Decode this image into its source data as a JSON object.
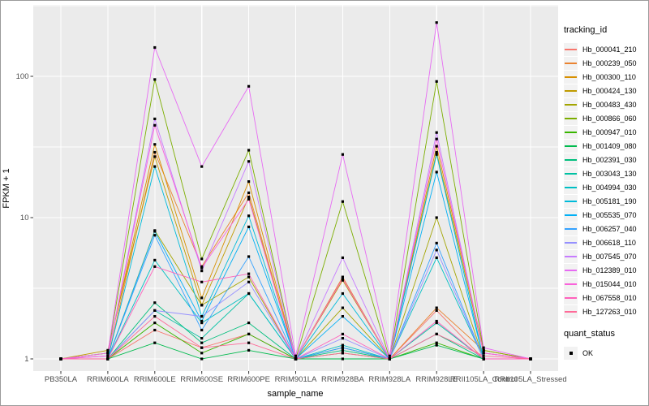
{
  "figure": {
    "xlabel": "sample_name",
    "ylabel": "FPKM + 1"
  },
  "legend": {
    "tracking_title": "tracking_id",
    "quant_title": "quant_status",
    "quant_ok_label": "OK",
    "quant_marker_color": "#000000",
    "key_background": "#F2F2F2"
  },
  "chart_data": {
    "type": "line",
    "title": "",
    "xlabel": "sample_name",
    "ylabel": "FPKM + 1",
    "yscale": "log10",
    "yticks": [
      1,
      10,
      100
    ],
    "ytick_labels": [
      "1",
      "10",
      "100"
    ],
    "ylim": [
      0.85,
      316
    ],
    "grid": true,
    "legend_position": "right",
    "panel_bg": "#EBEBEB",
    "grid_color": "#FFFFFF",
    "tick_label_color": "#4D4D4D",
    "point_color": "#000000",
    "point_shape": "square",
    "categories": [
      "PB350LA",
      "RRIM600LA",
      "RRIM600LE",
      "RRIM600SE",
      "RRIM600PE",
      "RRIM901LA",
      "RRIM928BA",
      "RRIM928LA",
      "RRIM928LE",
      "RRII105LA_Control",
      "RRII105LA_Stressed"
    ],
    "series": [
      {
        "name": "Hb_000041_210",
        "color": "#F8766D",
        "quant_status": "OK",
        "values": [
          1,
          1,
          1.6,
          1.2,
          1.5,
          1,
          1.2,
          1,
          2.2,
          1,
          1
        ]
      },
      {
        "name": "Hb_000239_050",
        "color": "#EA8331",
        "quant_status": "OK",
        "values": [
          1,
          1,
          29,
          4.5,
          15,
          1,
          3.8,
          1,
          2.3,
          1.15,
          1
        ]
      },
      {
        "name": "Hb_000300_110",
        "color": "#D89000",
        "quant_status": "OK",
        "values": [
          1,
          1.1,
          33,
          2.7,
          18,
          1,
          3.7,
          1,
          32,
          1.15,
          1
        ]
      },
      {
        "name": "Hb_000424_130",
        "color": "#C09B00",
        "quant_status": "OK",
        "values": [
          1,
          1.15,
          27,
          2.4,
          14,
          1,
          3.6,
          1,
          29,
          1.1,
          1
        ]
      },
      {
        "name": "Hb_000483_430",
        "color": "#A3A500",
        "quant_status": "OK",
        "values": [
          1,
          1,
          8.1,
          2.4,
          3.8,
          1,
          2.3,
          1,
          10,
          1,
          1
        ]
      },
      {
        "name": "Hb_000866_060",
        "color": "#7CAE00",
        "quant_status": "OK",
        "values": [
          1,
          1.1,
          95,
          5.1,
          30,
          1,
          13,
          1,
          92,
          1.15,
          1
        ]
      },
      {
        "name": "Hb_000947_010",
        "color": "#39B600",
        "quant_status": "OK",
        "values": [
          1,
          1,
          1.8,
          1.1,
          1.5,
          1,
          1.1,
          1,
          1.3,
          1,
          1
        ]
      },
      {
        "name": "Hb_001409_080",
        "color": "#00BB4E",
        "quant_status": "OK",
        "values": [
          1,
          1,
          1.3,
          1,
          1.15,
          1,
          1,
          1,
          1.25,
          1,
          1
        ]
      },
      {
        "name": "Hb_002391_030",
        "color": "#00BF7D",
        "quant_status": "OK",
        "values": [
          1,
          1,
          2.5,
          1.3,
          1.8,
          1,
          1.15,
          1,
          1.5,
          1,
          1
        ]
      },
      {
        "name": "Hb_003043_130",
        "color": "#00C1A3",
        "quant_status": "OK",
        "values": [
          1,
          1,
          2.2,
          1.4,
          2.9,
          1,
          1.2,
          1,
          1.8,
          1,
          1
        ]
      },
      {
        "name": "Hb_004994_030",
        "color": "#00BFC4",
        "quant_status": "OK",
        "values": [
          1,
          1,
          5.0,
          1.8,
          2.9,
          1,
          1.25,
          1,
          5.2,
          1,
          1
        ]
      },
      {
        "name": "Hb_005181_190",
        "color": "#00BBDA",
        "quant_status": "OK",
        "values": [
          1,
          1,
          23,
          2.0,
          10.3,
          1,
          2.9,
          1,
          28,
          1,
          1
        ]
      },
      {
        "name": "Hb_005535_070",
        "color": "#00B0F6",
        "quant_status": "OK",
        "values": [
          1,
          1,
          8.0,
          1.85,
          8.6,
          1,
          2.0,
          1,
          21,
          1,
          1
        ]
      },
      {
        "name": "Hb_006257_040",
        "color": "#35A2FF",
        "quant_status": "OK",
        "values": [
          1,
          1,
          7.5,
          1.6,
          5.3,
          1,
          1.2,
          1,
          6.6,
          1,
          1
        ]
      },
      {
        "name": "Hb_006618_110",
        "color": "#9590FF",
        "quant_status": "OK",
        "values": [
          1,
          1,
          2.2,
          2.0,
          3.5,
          1,
          1.4,
          1,
          5.9,
          1,
          1
        ]
      },
      {
        "name": "Hb_007545_070",
        "color": "#C77CFF",
        "quant_status": "OK",
        "values": [
          1,
          1.05,
          50,
          4.2,
          25,
          1,
          5.2,
          1,
          40,
          1.1,
          1
        ]
      },
      {
        "name": "Hb_012389_010",
        "color": "#E76BF3",
        "quant_status": "OK",
        "values": [
          1,
          1.1,
          160,
          23,
          85,
          1.05,
          28,
          1.05,
          240,
          1.2,
          1
        ]
      },
      {
        "name": "Hb_015044_010",
        "color": "#FA62DB",
        "quant_status": "OK",
        "values": [
          1,
          1.05,
          45,
          4.4,
          13.5,
          1,
          3.7,
          1,
          36,
          1.1,
          1
        ]
      },
      {
        "name": "Hb_067558_010",
        "color": "#FF62BC",
        "quant_status": "OK",
        "values": [
          1,
          1,
          4.5,
          3.5,
          4.0,
          1,
          1.5,
          1,
          1.85,
          1,
          1
        ]
      },
      {
        "name": "Hb_127263_010",
        "color": "#FF6A98",
        "quant_status": "OK",
        "values": [
          1,
          1,
          2.0,
          1.2,
          1.3,
          1,
          1.1,
          1,
          1.5,
          1.05,
          1
        ]
      }
    ]
  }
}
